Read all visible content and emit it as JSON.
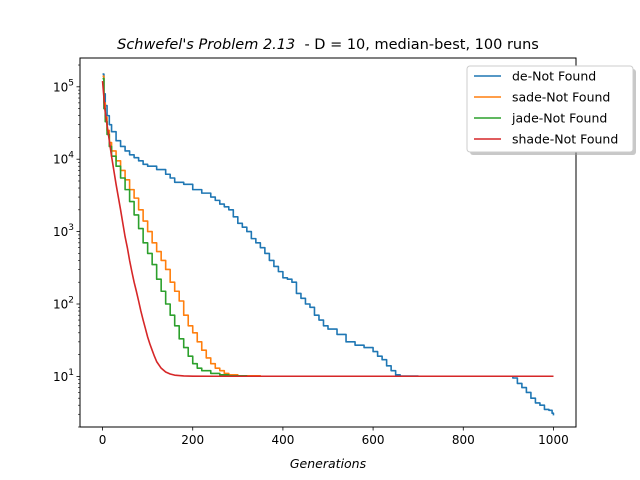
{
  "chart_data": {
    "type": "line",
    "title": {
      "math_part": "Schwefel's Problem 2.13",
      "rest": "  - D = 10, median-best, 100 runs"
    },
    "xlabel": "Generations",
    "ylabel": "",
    "xlim": [
      -50,
      1050
    ],
    "xticks": [
      0,
      200,
      400,
      600,
      800,
      1000
    ],
    "yscale": "log",
    "ylim": [
      2,
      250000
    ],
    "yticks": [
      {
        "value": 10,
        "base": "10",
        "exp": "1"
      },
      {
        "value": 100,
        "base": "10",
        "exp": "2"
      },
      {
        "value": 1000,
        "base": "10",
        "exp": "3"
      },
      {
        "value": 10000,
        "base": "10",
        "exp": "4"
      },
      {
        "value": 100000,
        "base": "10",
        "exp": "5"
      }
    ],
    "grid": false,
    "legend_position": "top-right",
    "series": [
      {
        "name": "de-Not Found",
        "color": "#1f77b4",
        "style": "step",
        "points": [
          [
            0,
            150000
          ],
          [
            3,
            80000
          ],
          [
            6,
            55000
          ],
          [
            10,
            40000
          ],
          [
            15,
            30000
          ],
          [
            20,
            24000
          ],
          [
            30,
            18000
          ],
          [
            40,
            15000
          ],
          [
            50,
            13000
          ],
          [
            60,
            11500
          ],
          [
            70,
            10500
          ],
          [
            80,
            9500
          ],
          [
            90,
            8500
          ],
          [
            100,
            8000
          ],
          [
            120,
            7200
          ],
          [
            140,
            6200
          ],
          [
            150,
            5500
          ],
          [
            160,
            4800
          ],
          [
            180,
            4500
          ],
          [
            200,
            3800
          ],
          [
            220,
            3400
          ],
          [
            240,
            3000
          ],
          [
            250,
            2700
          ],
          [
            260,
            2400
          ],
          [
            270,
            2200
          ],
          [
            280,
            2000
          ],
          [
            290,
            1600
          ],
          [
            300,
            1300
          ],
          [
            310,
            1150
          ],
          [
            320,
            1000
          ],
          [
            330,
            800
          ],
          [
            340,
            700
          ],
          [
            350,
            600
          ],
          [
            360,
            500
          ],
          [
            370,
            400
          ],
          [
            380,
            330
          ],
          [
            390,
            280
          ],
          [
            400,
            230
          ],
          [
            410,
            220
          ],
          [
            420,
            200
          ],
          [
            430,
            140
          ],
          [
            440,
            120
          ],
          [
            450,
            100
          ],
          [
            460,
            90
          ],
          [
            470,
            70
          ],
          [
            480,
            60
          ],
          [
            490,
            50
          ],
          [
            500,
            45
          ],
          [
            520,
            38
          ],
          [
            540,
            30
          ],
          [
            560,
            27
          ],
          [
            580,
            25
          ],
          [
            600,
            22
          ],
          [
            610,
            19
          ],
          [
            620,
            17
          ],
          [
            630,
            14
          ],
          [
            640,
            12
          ],
          [
            650,
            10.5
          ],
          [
            660,
            10.1
          ],
          [
            700,
            10.05
          ],
          [
            900,
            10.05
          ],
          [
            910,
            9.5
          ],
          [
            920,
            8
          ],
          [
            930,
            7
          ],
          [
            940,
            6
          ],
          [
            950,
            5
          ],
          [
            960,
            4.3
          ],
          [
            970,
            4
          ],
          [
            980,
            3.5
          ],
          [
            990,
            3.4
          ],
          [
            997,
            3.1
          ],
          [
            1000,
            2.9
          ]
        ]
      },
      {
        "name": "sade-Not Found",
        "color": "#ff7f0e",
        "style": "step",
        "points": [
          [
            0,
            140000
          ],
          [
            3,
            60000
          ],
          [
            6,
            38000
          ],
          [
            10,
            25000
          ],
          [
            15,
            17000
          ],
          [
            20,
            13000
          ],
          [
            30,
            9500
          ],
          [
            40,
            7000
          ],
          [
            50,
            5200
          ],
          [
            60,
            3800
          ],
          [
            70,
            2900
          ],
          [
            80,
            2000
          ],
          [
            90,
            1400
          ],
          [
            100,
            1000
          ],
          [
            110,
            700
          ],
          [
            120,
            530
          ],
          [
            130,
            400
          ],
          [
            140,
            300
          ],
          [
            150,
            200
          ],
          [
            160,
            150
          ],
          [
            170,
            110
          ],
          [
            180,
            70
          ],
          [
            190,
            50
          ],
          [
            200,
            40
          ],
          [
            210,
            30
          ],
          [
            220,
            23
          ],
          [
            230,
            18
          ],
          [
            240,
            15
          ],
          [
            250,
            13
          ],
          [
            260,
            12
          ],
          [
            270,
            11
          ],
          [
            280,
            10.5
          ],
          [
            300,
            10.2
          ],
          [
            350,
            10.05
          ],
          [
            1000,
            10.05
          ]
        ]
      },
      {
        "name": "jade-Not Found",
        "color": "#2ca02c",
        "style": "step",
        "points": [
          [
            0,
            130000
          ],
          [
            3,
            50000
          ],
          [
            6,
            33000
          ],
          [
            10,
            22000
          ],
          [
            15,
            15000
          ],
          [
            20,
            11000
          ],
          [
            30,
            8000
          ],
          [
            40,
            5500
          ],
          [
            50,
            3800
          ],
          [
            60,
            2600
          ],
          [
            70,
            1700
          ],
          [
            80,
            1100
          ],
          [
            90,
            700
          ],
          [
            100,
            500
          ],
          [
            110,
            350
          ],
          [
            120,
            220
          ],
          [
            130,
            150
          ],
          [
            140,
            100
          ],
          [
            150,
            70
          ],
          [
            160,
            50
          ],
          [
            170,
            33
          ],
          [
            180,
            25
          ],
          [
            190,
            19
          ],
          [
            200,
            15
          ],
          [
            210,
            13
          ],
          [
            220,
            12
          ],
          [
            240,
            11
          ],
          [
            260,
            10.5
          ],
          [
            280,
            10.2
          ],
          [
            320,
            10.05
          ],
          [
            1000,
            10.05
          ]
        ]
      },
      {
        "name": "shade-Not Found",
        "color": "#d62728",
        "style": "line",
        "points": [
          [
            0,
            120000
          ],
          [
            5,
            50000
          ],
          [
            10,
            30000
          ],
          [
            15,
            18000
          ],
          [
            20,
            11000
          ],
          [
            25,
            7000
          ],
          [
            30,
            4500
          ],
          [
            35,
            3000
          ],
          [
            40,
            2000
          ],
          [
            45,
            1300
          ],
          [
            50,
            850
          ],
          [
            55,
            600
          ],
          [
            60,
            400
          ],
          [
            65,
            280
          ],
          [
            70,
            200
          ],
          [
            75,
            150
          ],
          [
            80,
            110
          ],
          [
            85,
            80
          ],
          [
            90,
            60
          ],
          [
            95,
            46
          ],
          [
            100,
            35
          ],
          [
            105,
            28
          ],
          [
            110,
            23
          ],
          [
            115,
            19
          ],
          [
            120,
            16
          ],
          [
            130,
            13
          ],
          [
            140,
            11.5
          ],
          [
            150,
            10.8
          ],
          [
            160,
            10.4
          ],
          [
            180,
            10.15
          ],
          [
            200,
            10.08
          ],
          [
            250,
            10.05
          ],
          [
            1000,
            10.05
          ]
        ]
      }
    ]
  }
}
